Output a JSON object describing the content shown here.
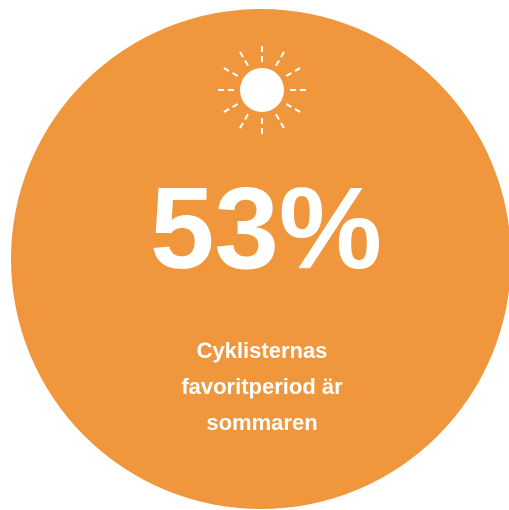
{
  "stat": "53%",
  "caption": [
    "Cyklisternas",
    "favoritperiod är",
    "sommaren"
  ]
}
